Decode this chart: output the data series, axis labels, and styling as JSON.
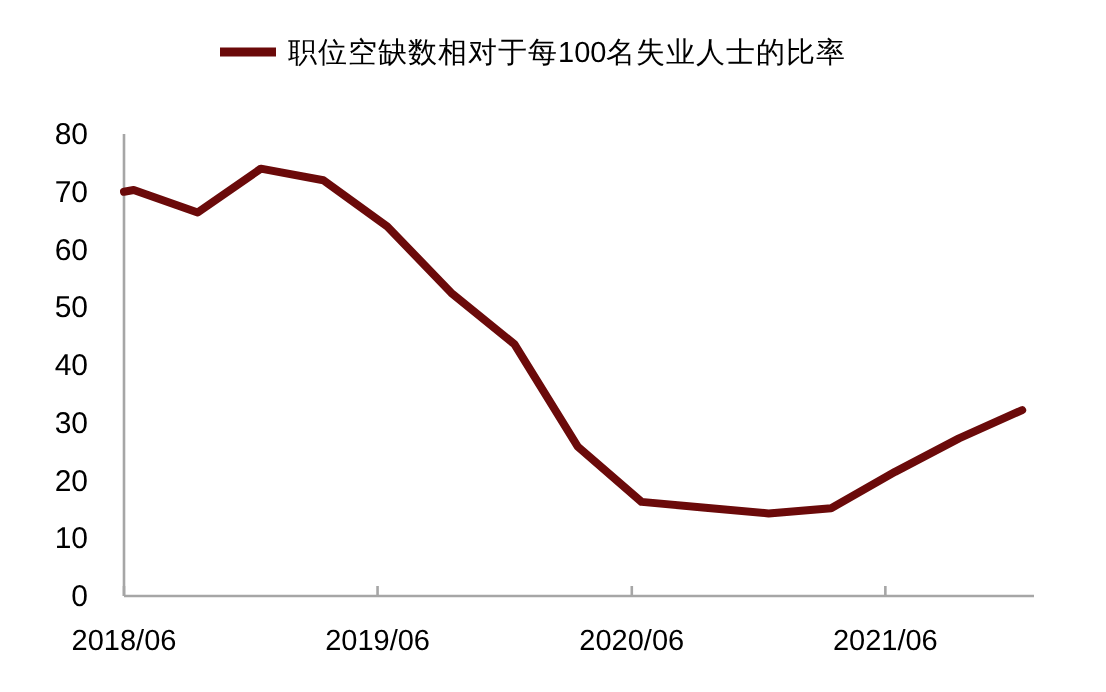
{
  "chart_data": {
    "type": "line",
    "x": [
      "2018-06-01",
      "2018-06-15",
      "2018-09-15",
      "2018-12-15",
      "2019-03-15",
      "2019-06-15",
      "2019-09-15",
      "2019-12-15",
      "2020-03-15",
      "2020-06-15",
      "2020-09-15",
      "2020-12-15",
      "2021-03-15",
      "2021-06-15",
      "2021-09-15",
      "2021-12-15"
    ],
    "series": [
      {
        "name": "职位空缺数相对于每100名失业人士的比率",
        "color": "#6b0a0a",
        "values": [
          70,
          70.3,
          66.4,
          74,
          72,
          64,
          52.5,
          43.6,
          25.9,
          16.3,
          15.3,
          14.3,
          15.2,
          21.5,
          27.3,
          32.2
        ]
      }
    ],
    "xlim": [
      "2018-06-01",
      "2022-01-01"
    ],
    "xticks": [
      {
        "value": "2018-06-01",
        "label": "2018/06"
      },
      {
        "value": "2019-06-01",
        "label": "2019/06"
      },
      {
        "value": "2020-06-01",
        "label": "2020/06"
      },
      {
        "value": "2021-06-01",
        "label": "2021/06"
      }
    ],
    "ylim": [
      0,
      80
    ],
    "yticks": [
      0,
      10,
      20,
      30,
      40,
      50,
      60,
      70,
      80
    ],
    "legend": "top",
    "grid": false
  }
}
